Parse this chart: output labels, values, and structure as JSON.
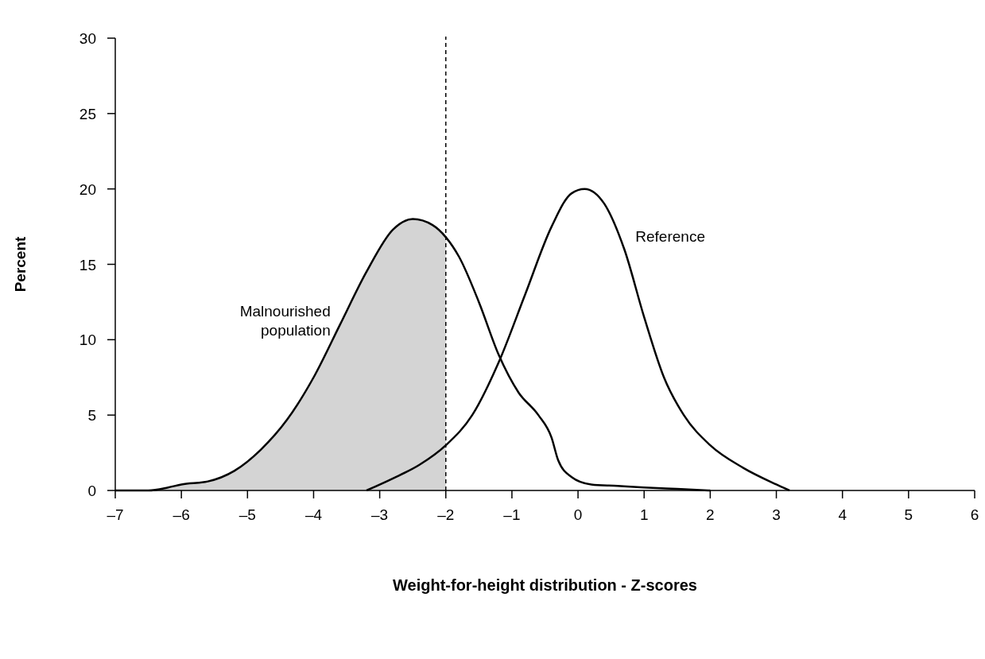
{
  "chart_data": {
    "type": "line",
    "xlabel": "Weight-for-height distribution - Z-scores",
    "ylabel": "Percent",
    "xlim": [
      -7,
      6
    ],
    "ylim": [
      0,
      30
    ],
    "xticks": [
      {
        "value": -7,
        "label": "–7"
      },
      {
        "value": -6,
        "label": "–6"
      },
      {
        "value": -5,
        "label": "–5"
      },
      {
        "value": -4,
        "label": "–4"
      },
      {
        "value": -3,
        "label": "–3"
      },
      {
        "value": -2,
        "label": "–2"
      },
      {
        "value": -1,
        "label": "–1"
      },
      0,
      1,
      2,
      3,
      4,
      5,
      6
    ],
    "yticks": [
      0,
      5,
      10,
      15,
      20,
      25,
      30
    ],
    "marker": "none",
    "line_style": "solid",
    "series": [
      {
        "type": "area",
        "color": "#d4d4d4",
        "x": [
          -7,
          -6.5,
          -6.2,
          -6,
          -5.6,
          -5.2,
          -4.8,
          -4.4,
          -4,
          -3.6,
          -3.2,
          -2.8,
          -2.5,
          -2.2,
          -2
        ],
        "values": [
          0,
          0,
          0.2,
          0.4,
          0.6,
          1.3,
          2.7,
          4.7,
          7.5,
          11,
          14.5,
          17.3,
          18,
          17.6,
          16.8
        ]
      },
      {
        "name": "Malnourished population",
        "color": "#000000",
        "x": [
          -7,
          -6.5,
          -6.2,
          -6,
          -5.6,
          -5.2,
          -4.8,
          -4.4,
          -4,
          -3.6,
          -3.2,
          -2.8,
          -2.5,
          -2.2,
          -2,
          -1.8,
          -1.5,
          -1.2,
          -0.9,
          -0.6,
          -0.4,
          -0.3,
          -0.1,
          0.2,
          0.6,
          1,
          1.5,
          2
        ],
        "values": [
          0,
          0,
          0.2,
          0.4,
          0.6,
          1.3,
          2.7,
          4.7,
          7.5,
          11,
          14.5,
          17.3,
          18,
          17.6,
          16.8,
          15.5,
          12.5,
          9,
          6.5,
          5,
          3.5,
          2,
          0.9,
          0.4,
          0.3,
          0.2,
          0.1,
          0
        ]
      },
      {
        "name": "Reference",
        "color": "#000000",
        "x": [
          -3.2,
          -2.8,
          -2.4,
          -2,
          -1.6,
          -1.2,
          -0.8,
          -0.4,
          -0.1,
          0.1,
          0.4,
          0.7,
          1,
          1.3,
          1.6,
          2,
          2.5,
          3,
          3.2
        ],
        "values": [
          0,
          0.8,
          1.7,
          3,
          5,
          8.5,
          13,
          17.5,
          19.7,
          20,
          19,
          16,
          11.5,
          7.5,
          5,
          3,
          1.5,
          0.4,
          0
        ]
      }
    ],
    "ref_lines": [
      {
        "axis": "x",
        "value": -2,
        "color": "#000000",
        "line_style": "dashed"
      }
    ]
  }
}
